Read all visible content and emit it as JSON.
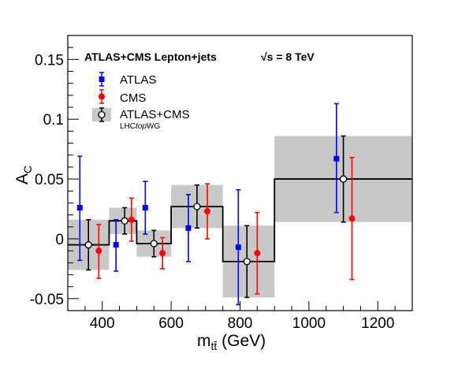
{
  "chart_data": {
    "type": "scatter",
    "title": "ATLAS+CMS Lepton+jets",
    "energy_label": "√s = 8 TeV",
    "xlabel": "m_tt̄ (GeV)",
    "xlabel_main": "m",
    "xlabel_sub": "tt̄",
    "xlabel_unit": " (GeV)",
    "ylabel": "A_C",
    "ylabel_main": "A",
    "ylabel_sub": "C",
    "xlim": [
      300,
      1300
    ],
    "ylim": [
      -0.06,
      0.17
    ],
    "x_ticks": [
      400,
      600,
      800,
      1000,
      1200
    ],
    "x_tick_labels": [
      "400",
      "600",
      "800",
      "1000",
      "1200"
    ],
    "y_ticks": [
      -0.05,
      0,
      0.05,
      0.1,
      0.15
    ],
    "y_tick_labels": [
      "-0.05",
      "0",
      "0.05",
      "0.1",
      "0.15"
    ],
    "legend": {
      "position": "top-left",
      "entries": [
        "ATLAS",
        "CMS",
        "ATLAS+CMS"
      ],
      "sublabel_prefix": "LHC",
      "sublabel_italic": "top",
      "sublabel_suffix": "WG"
    },
    "bins": [
      {
        "low": 300,
        "high": 420,
        "combined": -0.005,
        "err_low": 0.021,
        "err_high": 0.021
      },
      {
        "low": 420,
        "high": 500,
        "combined": 0.015,
        "err_low": 0.011,
        "err_high": 0.011
      },
      {
        "low": 500,
        "high": 600,
        "combined": -0.004,
        "err_low": 0.011,
        "err_high": 0.011
      },
      {
        "low": 600,
        "high": 750,
        "combined": 0.027,
        "err_low": 0.018,
        "err_high": 0.018
      },
      {
        "low": 750,
        "high": 900,
        "combined": -0.019,
        "err_low": 0.03,
        "err_high": 0.03
      },
      {
        "low": 900,
        "high": 1300,
        "combined": 0.05,
        "err_low": 0.036,
        "err_high": 0.036
      }
    ],
    "series": [
      {
        "name": "ATLAS",
        "color": "#0000ff",
        "marker": "square",
        "points": [
          {
            "x": 335,
            "y": 0.026,
            "err_low": 0.044,
            "err_high": 0.043
          },
          {
            "x": 440,
            "y": -0.005,
            "err_low": 0.022,
            "err_high": 0.021
          },
          {
            "x": 525,
            "y": 0.026,
            "err_low": 0.022,
            "err_high": 0.022
          },
          {
            "x": 650,
            "y": 0.009,
            "err_low": 0.028,
            "err_high": 0.028
          },
          {
            "x": 795,
            "y": -0.007,
            "err_low": 0.048,
            "err_high": 0.048
          },
          {
            "x": 1080,
            "y": 0.067,
            "err_low": 0.045,
            "err_high": 0.046
          }
        ]
      },
      {
        "name": "CMS",
        "color": "#ff0000",
        "marker": "circle",
        "points": [
          {
            "x": 390,
            "y": -0.01,
            "err_low": 0.023,
            "err_high": 0.022
          },
          {
            "x": 485,
            "y": 0.016,
            "err_low": 0.018,
            "err_high": 0.018
          },
          {
            "x": 575,
            "y": -0.012,
            "err_low": 0.013,
            "err_high": 0.013
          },
          {
            "x": 705,
            "y": 0.023,
            "err_low": 0.023,
            "err_high": 0.023
          },
          {
            "x": 850,
            "y": -0.012,
            "err_low": 0.034,
            "err_high": 0.034
          },
          {
            "x": 1125,
            "y": 0.017,
            "err_low": 0.051,
            "err_high": 0.051
          }
        ]
      },
      {
        "name": "ATLAS+CMS",
        "color": "#000000",
        "marker": "open-circle",
        "points": [
          {
            "x": 360,
            "y": -0.005,
            "err_low": 0.021,
            "err_high": 0.021
          },
          {
            "x": 465,
            "y": 0.015,
            "err_low": 0.011,
            "err_high": 0.011
          },
          {
            "x": 550,
            "y": -0.004,
            "err_low": 0.011,
            "err_high": 0.011
          },
          {
            "x": 675,
            "y": 0.027,
            "err_low": 0.018,
            "err_high": 0.018
          },
          {
            "x": 820,
            "y": -0.019,
            "err_low": 0.03,
            "err_high": 0.03
          },
          {
            "x": 1100,
            "y": 0.05,
            "err_low": 0.036,
            "err_high": 0.036
          }
        ]
      }
    ],
    "colors": {
      "band": "#c8c8c8",
      "atlas": "#0000ff",
      "cms": "#ff0000",
      "combined": "#000000"
    }
  }
}
